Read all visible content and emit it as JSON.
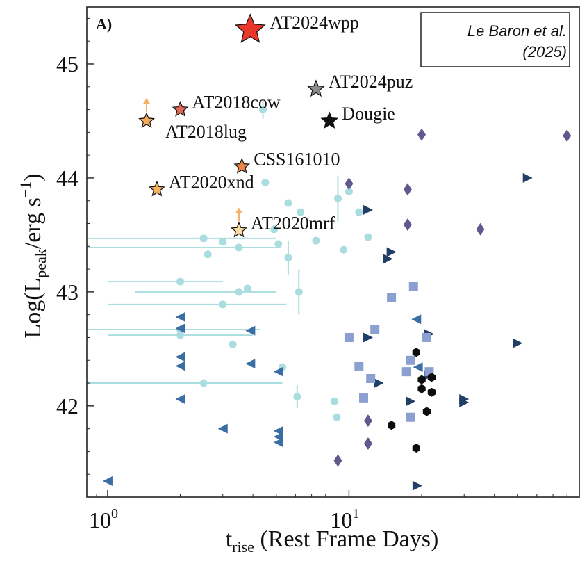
{
  "chart_data": {
    "type": "scatter",
    "panel_label": "A)",
    "credit": {
      "line1": "Le Baron et al.",
      "line2": "(2025)"
    },
    "xlabel": {
      "main": "t",
      "sub": "rise",
      "rest": " (Rest Frame Days)"
    },
    "ylabel": {
      "a": "Log(L",
      "sub": "peak",
      "b": "/erg s",
      "sup": "−1",
      "c": ")"
    },
    "x_scale": "log",
    "xlim": [
      0.82,
      90
    ],
    "ylim": [
      41.2,
      45.5
    ],
    "x_ticks": [
      {
        "value": 1,
        "base": "10",
        "exp": "0"
      },
      {
        "value": 10,
        "base": "10",
        "exp": "1"
      }
    ],
    "y_ticks": [
      {
        "value": 42,
        "label": "42"
      },
      {
        "value": 43,
        "label": "43"
      },
      {
        "value": 44,
        "label": "44"
      },
      {
        "value": 45,
        "label": "45"
      }
    ],
    "grid": false,
    "named_events": [
      {
        "label": "AT2024wpp",
        "x": 3.9,
        "y": 45.3,
        "color": "#e8382c",
        "size": 22,
        "lower_limit": false,
        "label_pos": "right"
      },
      {
        "label": "AT2024puz",
        "x": 7.3,
        "y": 44.78,
        "color": "#8c8c8c",
        "size": 12,
        "lower_limit": false,
        "label_pos": "right"
      },
      {
        "label": "Dougie",
        "x": 8.3,
        "y": 44.5,
        "color": "#111111",
        "size": 12,
        "lower_limit": false,
        "label_pos": "right"
      },
      {
        "label": "AT2018cow",
        "x": 2.0,
        "y": 44.6,
        "color": "#e06a58",
        "size": 11,
        "lower_limit": false,
        "label_pos": "right"
      },
      {
        "label": "AT2018lug",
        "x": 1.45,
        "y": 44.5,
        "color": "#f5a95a",
        "size": 11,
        "lower_limit": true,
        "label_pos": "below-right"
      },
      {
        "label": "CSS161010",
        "x": 3.6,
        "y": 44.1,
        "color": "#ec8447",
        "size": 11,
        "lower_limit": false,
        "label_pos": "right"
      },
      {
        "label": "AT2020xnd",
        "x": 1.6,
        "y": 43.9,
        "color": "#f6b25e",
        "size": 11,
        "lower_limit": false,
        "label_pos": "right"
      },
      {
        "label": "AT2020mrf",
        "x": 3.5,
        "y": 43.54,
        "color": "#fbdca2",
        "size": 11,
        "lower_limit": true,
        "label_pos": "right"
      }
    ],
    "series": [
      {
        "marker": "circle",
        "color": "#a9dde0",
        "points": [
          {
            "x": 4.4,
            "y": 44.6,
            "yerr": 0.08
          },
          {
            "x": 4.5,
            "y": 43.96
          },
          {
            "x": 5.6,
            "y": 43.78
          },
          {
            "x": 6.3,
            "y": 43.7
          },
          {
            "x": 10.0,
            "y": 43.88
          },
          {
            "x": 11.0,
            "y": 43.7
          },
          {
            "x": 9.0,
            "y": 43.82,
            "yerr": 0.2
          },
          {
            "x": 7.3,
            "y": 43.45
          },
          {
            "x": 9.5,
            "y": 43.37
          },
          {
            "x": 12.0,
            "y": 43.48
          },
          {
            "x": 2.5,
            "y": 43.47,
            "xlo": 0.82,
            "xhi": 5.0
          },
          {
            "x": 2.6,
            "y": 43.33
          },
          {
            "x": 3.0,
            "y": 43.44
          },
          {
            "x": 3.5,
            "y": 43.39,
            "xlo": 0.82,
            "xhi": 5.0
          },
          {
            "x": 5.1,
            "y": 43.42
          },
          {
            "x": 5.6,
            "y": 43.3,
            "yerr": 0.15
          },
          {
            "x": 4.9,
            "y": 43.55
          },
          {
            "x": 2.0,
            "y": 43.09,
            "xlo": 1.0,
            "xhi": 3.0
          },
          {
            "x": 3.5,
            "y": 43.0,
            "xlo": 1.3,
            "xhi": 5.0
          },
          {
            "x": 3.8,
            "y": 43.03
          },
          {
            "x": 3.0,
            "y": 42.89,
            "xlo": 1.0,
            "xhi": 5.5
          },
          {
            "x": 6.2,
            "y": 43.0,
            "yerr": 0.2
          },
          {
            "x": 2.0,
            "y": 42.67,
            "xlo": 0.82,
            "xhi": 4.3
          },
          {
            "x": 2.0,
            "y": 42.62,
            "xlo": 1.0,
            "xhi": 4.0
          },
          {
            "x": 3.3,
            "y": 42.54
          },
          {
            "x": 5.3,
            "y": 42.34
          },
          {
            "x": 2.5,
            "y": 42.2,
            "xlo": 0.82,
            "xhi": 5.3
          },
          {
            "x": 6.1,
            "y": 42.08,
            "yerr": 0.1
          },
          {
            "x": 8.7,
            "y": 42.04
          },
          {
            "x": 8.9,
            "y": 41.9
          }
        ]
      },
      {
        "marker": "tri-left",
        "color": "#3b6ea5",
        "points": [
          {
            "x": 1.0,
            "y": 41.34
          },
          {
            "x": 2.0,
            "y": 42.78
          },
          {
            "x": 2.0,
            "y": 42.68
          },
          {
            "x": 2.0,
            "y": 42.43
          },
          {
            "x": 2.0,
            "y": 42.35
          },
          {
            "x": 2.0,
            "y": 42.06
          },
          {
            "x": 3.0,
            "y": 41.8
          },
          {
            "x": 3.9,
            "y": 42.66
          },
          {
            "x": 3.9,
            "y": 42.37
          },
          {
            "x": 5.1,
            "y": 42.3
          },
          {
            "x": 5.1,
            "y": 41.78
          },
          {
            "x": 5.1,
            "y": 41.73
          },
          {
            "x": 5.1,
            "y": 41.68
          },
          {
            "x": 19.0,
            "y": 42.76
          },
          {
            "x": 19.3,
            "y": 42.34
          }
        ]
      },
      {
        "marker": "tri-right",
        "color": "#213f66",
        "points": [
          {
            "x": 12.0,
            "y": 43.72
          },
          {
            "x": 15.0,
            "y": 43.35
          },
          {
            "x": 14.5,
            "y": 43.29
          },
          {
            "x": 12.0,
            "y": 42.6
          },
          {
            "x": 13.3,
            "y": 42.2
          },
          {
            "x": 18.0,
            "y": 42.04
          },
          {
            "x": 19.2,
            "y": 41.3
          },
          {
            "x": 21.5,
            "y": 42.63
          },
          {
            "x": 21.5,
            "y": 42.27
          },
          {
            "x": 30.0,
            "y": 42.06
          },
          {
            "x": 30.0,
            "y": 42.03
          },
          {
            "x": 50.0,
            "y": 42.55
          },
          {
            "x": 55.0,
            "y": 44.0
          }
        ]
      },
      {
        "marker": "square",
        "color": "#8b9fd1",
        "points": [
          {
            "x": 15.0,
            "y": 42.95
          },
          {
            "x": 18.5,
            "y": 43.05
          },
          {
            "x": 10.0,
            "y": 42.6
          },
          {
            "x": 12.8,
            "y": 42.67
          },
          {
            "x": 21.0,
            "y": 42.6
          },
          {
            "x": 11.0,
            "y": 42.35
          },
          {
            "x": 12.3,
            "y": 42.24
          },
          {
            "x": 11.5,
            "y": 42.07
          },
          {
            "x": 18.0,
            "y": 42.4
          },
          {
            "x": 17.3,
            "y": 42.3
          },
          {
            "x": 21.5,
            "y": 42.3
          },
          {
            "x": 18.0,
            "y": 41.9
          }
        ]
      },
      {
        "marker": "diamond",
        "color": "#5e5a8e",
        "points": [
          {
            "x": 20.0,
            "y": 44.38
          },
          {
            "x": 80.0,
            "y": 44.37
          },
          {
            "x": 10.0,
            "y": 43.95
          },
          {
            "x": 17.5,
            "y": 43.9
          },
          {
            "x": 17.5,
            "y": 43.59
          },
          {
            "x": 35.0,
            "y": 43.55
          },
          {
            "x": 12.0,
            "y": 41.87
          },
          {
            "x": 12.0,
            "y": 41.67
          },
          {
            "x": 9.0,
            "y": 41.52
          }
        ]
      },
      {
        "marker": "hexagon",
        "color": "#0d0d0d",
        "points": [
          {
            "x": 19.0,
            "y": 42.47
          },
          {
            "x": 20.0,
            "y": 42.23
          },
          {
            "x": 22.0,
            "y": 42.25
          },
          {
            "x": 20.0,
            "y": 42.15
          },
          {
            "x": 22.0,
            "y": 42.12
          },
          {
            "x": 21.0,
            "y": 41.95
          },
          {
            "x": 15.0,
            "y": 41.83
          },
          {
            "x": 19.0,
            "y": 41.63
          }
        ]
      }
    ]
  }
}
